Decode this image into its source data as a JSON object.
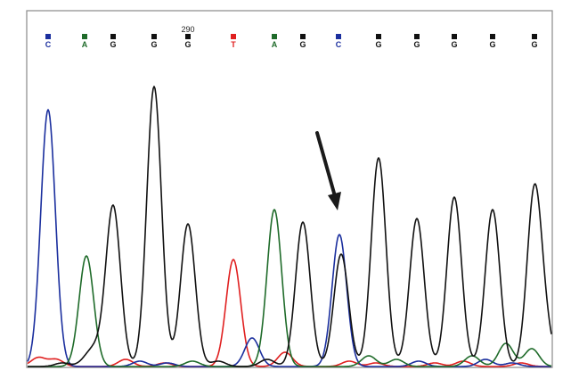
{
  "chart_data": {
    "type": "line",
    "position_label": "290",
    "position_label_base_index": 4,
    "colors": {
      "A": "#1f6b2a",
      "C": "#1b2f9e",
      "G": "#111111",
      "T": "#e02020",
      "frame": "#8a8a8a",
      "arrow": "#1a1a1a"
    },
    "base_calls": [
      {
        "base": "C",
        "x": 54
      },
      {
        "base": "A",
        "x": 95
      },
      {
        "base": "G",
        "x": 127
      },
      {
        "base": "G",
        "x": 173
      },
      {
        "base": "G",
        "x": 211
      },
      {
        "base": "T",
        "x": 262
      },
      {
        "base": "A",
        "x": 308
      },
      {
        "base": "G",
        "x": 340
      },
      {
        "base": "C",
        "x": 380
      },
      {
        "base": "G",
        "x": 425
      },
      {
        "base": "G",
        "x": 468
      },
      {
        "base": "G",
        "x": 510
      },
      {
        "base": "G",
        "x": 553
      },
      {
        "base": "G",
        "x": 600
      }
    ],
    "series": [
      {
        "channel": "G",
        "peaks": [
          {
            "x": 70,
            "h": 4
          },
          {
            "x": 98,
            "h": 8
          },
          {
            "x": 108,
            "h": 16
          },
          {
            "x": 127,
            "h": 180
          },
          {
            "x": 173,
            "h": 314
          },
          {
            "x": 211,
            "h": 160
          },
          {
            "x": 245,
            "h": 6
          },
          {
            "x": 300,
            "h": 8
          },
          {
            "x": 340,
            "h": 162
          },
          {
            "x": 383,
            "h": 126
          },
          {
            "x": 425,
            "h": 234
          },
          {
            "x": 468,
            "h": 166
          },
          {
            "x": 510,
            "h": 190
          },
          {
            "x": 553,
            "h": 176
          },
          {
            "x": 600,
            "h": 196
          },
          {
            "x": 613,
            "h": 30
          }
        ]
      },
      {
        "channel": "A",
        "peaks": [
          {
            "x": 97,
            "h": 124
          },
          {
            "x": 216,
            "h": 6
          },
          {
            "x": 308,
            "h": 176
          },
          {
            "x": 414,
            "h": 12
          },
          {
            "x": 445,
            "h": 8
          },
          {
            "x": 530,
            "h": 12
          },
          {
            "x": 568,
            "h": 26
          },
          {
            "x": 597,
            "h": 20
          }
        ]
      },
      {
        "channel": "C",
        "peaks": [
          {
            "x": 54,
            "h": 288
          },
          {
            "x": 157,
            "h": 6
          },
          {
            "x": 188,
            "h": 4
          },
          {
            "x": 283,
            "h": 32
          },
          {
            "x": 381,
            "h": 148
          },
          {
            "x": 470,
            "h": 6
          },
          {
            "x": 545,
            "h": 8
          },
          {
            "x": 575,
            "h": 4
          }
        ]
      },
      {
        "channel": "T",
        "peaks": [
          {
            "x": 43,
            "h": 10
          },
          {
            "x": 63,
            "h": 8
          },
          {
            "x": 141,
            "h": 8
          },
          {
            "x": 185,
            "h": 4
          },
          {
            "x": 262,
            "h": 120
          },
          {
            "x": 320,
            "h": 16
          },
          {
            "x": 392,
            "h": 6
          },
          {
            "x": 422,
            "h": 4
          },
          {
            "x": 488,
            "h": 4
          },
          {
            "x": 520,
            "h": 6
          },
          {
            "x": 585,
            "h": 4
          }
        ]
      }
    ]
  }
}
